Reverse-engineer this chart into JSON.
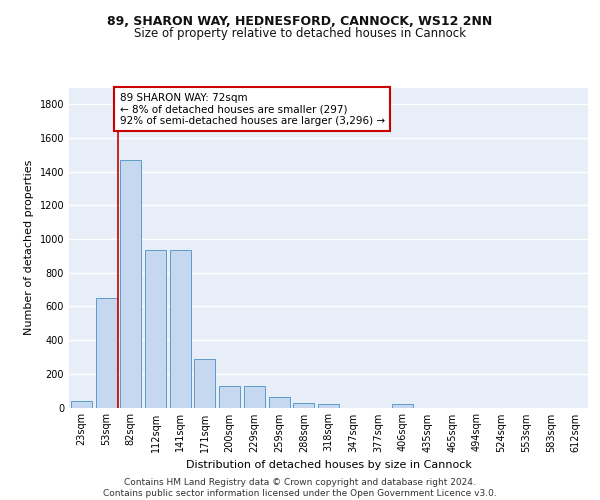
{
  "title1": "89, SHARON WAY, HEDNESFORD, CANNOCK, WS12 2NN",
  "title2": "Size of property relative to detached houses in Cannock",
  "xlabel": "Distribution of detached houses by size in Cannock",
  "ylabel": "Number of detached properties",
  "categories": [
    "23sqm",
    "53sqm",
    "82sqm",
    "112sqm",
    "141sqm",
    "171sqm",
    "200sqm",
    "229sqm",
    "259sqm",
    "288sqm",
    "318sqm",
    "347sqm",
    "377sqm",
    "406sqm",
    "435sqm",
    "465sqm",
    "494sqm",
    "524sqm",
    "553sqm",
    "583sqm",
    "612sqm"
  ],
  "values": [
    38,
    650,
    1470,
    935,
    935,
    290,
    125,
    125,
    63,
    25,
    20,
    0,
    0,
    18,
    0,
    0,
    0,
    0,
    0,
    0,
    0
  ],
  "bar_color": "#c5d8f0",
  "bar_edge_color": "#4a90c4",
  "vline_x": 1.5,
  "vline_color": "#cc0000",
  "annotation_text": "89 SHARON WAY: 72sqm\n← 8% of detached houses are smaller (297)\n92% of semi-detached houses are larger (3,296) →",
  "annotation_box_color": "#ffffff",
  "annotation_box_edge_color": "#cc0000",
  "ylim": [
    0,
    1900
  ],
  "yticks": [
    0,
    200,
    400,
    600,
    800,
    1000,
    1200,
    1400,
    1600,
    1800
  ],
  "background_color": "#e8eef8",
  "grid_color": "#ffffff",
  "footer_text": "Contains HM Land Registry data © Crown copyright and database right 2024.\nContains public sector information licensed under the Open Government Licence v3.0.",
  "title1_fontsize": 9,
  "title2_fontsize": 8.5,
  "axis_label_fontsize": 8,
  "tick_fontsize": 7,
  "annotation_fontsize": 7.5,
  "footer_fontsize": 6.5
}
